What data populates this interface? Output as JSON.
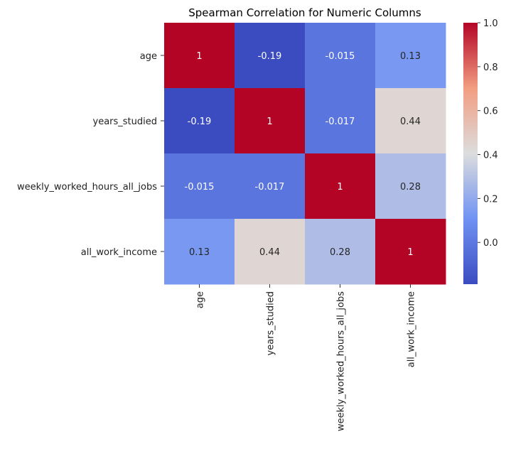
{
  "chart_data": {
    "type": "heatmap",
    "title": "Spearman Correlation for Numeric Columns",
    "xlabel": "",
    "ylabel": "",
    "row_labels": [
      "age",
      "years_studied",
      "weekly_worked_hours_all_jobs",
      "all_work_income"
    ],
    "col_labels": [
      "age",
      "years_studied",
      "weekly_worked_hours_all_jobs",
      "all_work_income"
    ],
    "values": [
      [
        1,
        -0.19,
        -0.015,
        0.13
      ],
      [
        -0.19,
        1,
        -0.017,
        0.44
      ],
      [
        -0.015,
        -0.017,
        1,
        0.28
      ],
      [
        0.13,
        0.44,
        0.28,
        1
      ]
    ],
    "annotations": [
      [
        "1",
        "-0.19",
        "-0.015",
        "0.13"
      ],
      [
        "-0.19",
        "1",
        "-0.017",
        "0.44"
      ],
      [
        "-0.015",
        "-0.017",
        "1",
        "0.28"
      ],
      [
        "0.13",
        "0.44",
        "0.28",
        "1"
      ]
    ],
    "colormap": "coolwarm",
    "vmin": -0.19,
    "vmax": 1.0,
    "colorbar_ticks": [
      "1.0",
      "0.8",
      "0.6",
      "0.4",
      "0.2",
      "0.0"
    ],
    "colorbar_tick_values": [
      1.0,
      0.8,
      0.6,
      0.4,
      0.2,
      0.0
    ],
    "grid": false
  }
}
